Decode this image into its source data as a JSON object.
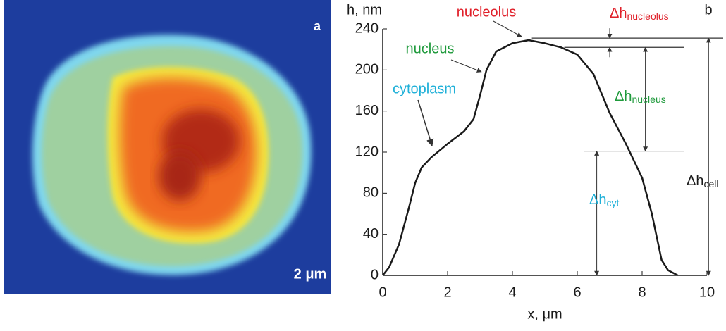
{
  "panel_a": {
    "label": "a",
    "scale_bar": "2 μm"
  },
  "chart_data": {
    "type": "line",
    "panel_label": "b",
    "y_label": "h, nm",
    "x_label": "x, μm",
    "xlim": [
      0,
      10
    ],
    "ylim": [
      0,
      240
    ],
    "xticks": [
      0,
      2,
      4,
      6,
      8,
      10
    ],
    "yticks": [
      0,
      40,
      80,
      120,
      160,
      200,
      240
    ],
    "series": [
      {
        "color": "#1a1a1a",
        "x": [
          0,
          0.2,
          0.5,
          0.8,
          1.0,
          1.2,
          1.5,
          2.0,
          2.5,
          2.8,
          3.0,
          3.2,
          3.5,
          4.0,
          4.5,
          5.0,
          5.5,
          6.0,
          6.5,
          7.0,
          7.5,
          8.0,
          8.3,
          8.6,
          8.8,
          9.1
        ],
        "values": [
          0,
          8,
          30,
          65,
          90,
          105,
          115,
          128,
          140,
          152,
          175,
          200,
          218,
          226,
          229,
          226,
          222,
          215,
          196,
          158,
          128,
          95,
          60,
          15,
          5,
          0
        ]
      }
    ],
    "reference_lines": [
      231,
      222,
      121
    ],
    "annotations": [
      {
        "text": "nucleolus",
        "color": "#e0202a"
      },
      {
        "text": "nucleus",
        "color": "#1f9a3c"
      },
      {
        "text": "cytoplasm",
        "color": "#1fb0d8"
      }
    ],
    "delta_labels": [
      {
        "text": "Δh",
        "sub": "nucleolus",
        "color": "#e0202a"
      },
      {
        "text": "Δh",
        "sub": "nucleus",
        "color": "#1f9a3c"
      },
      {
        "text": "Δh",
        "sub": "cyt",
        "color": "#1fb0d8"
      },
      {
        "text": "Δh",
        "sub": "cell",
        "color": "#1a1a1a"
      }
    ]
  }
}
